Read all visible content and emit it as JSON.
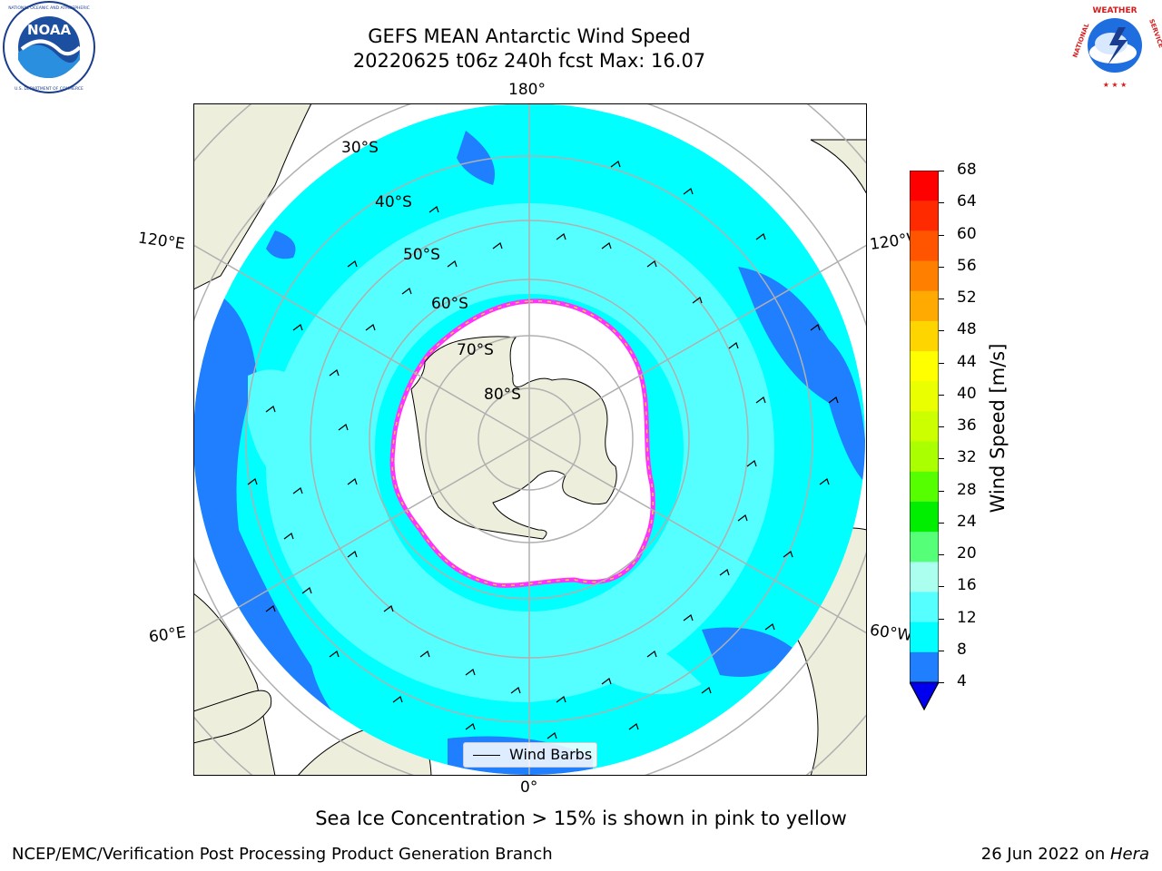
{
  "title": {
    "line1": "GEFS MEAN Antarctic Wind Speed",
    "line2": "20220625 t06z 240h fcst   Max: 16.07"
  },
  "map": {
    "projection": "south-polar-stereographic",
    "longitude_labels": {
      "top": "180°",
      "bottom": "0°",
      "upper_left": "120°E",
      "upper_right": "120°W",
      "lower_left": "60°E",
      "lower_right": "60°W"
    },
    "latitude_labels": [
      "30°S",
      "40°S",
      "50°S",
      "60°S",
      "70°S",
      "80°S"
    ],
    "colors": {
      "land": "#eeeedd",
      "ocean_4_8": "#1f7fff",
      "ocean_8_12": "#00ffff",
      "ocean_12_16": "#55ffff",
      "sea_ice": "#ffffff",
      "ice_edge": "#ff33ff",
      "ice_edge_inner": "#ffcc33",
      "gridline": "#b0b0b0"
    }
  },
  "legend": {
    "label": "Wind Barbs"
  },
  "colorbar": {
    "label": "Wind Speed [m/s]",
    "ticks": [
      "68",
      "64",
      "60",
      "56",
      "52",
      "48",
      "44",
      "40",
      "36",
      "32",
      "28",
      "24",
      "20",
      "16",
      "12",
      "8",
      "4"
    ],
    "colors_top_to_bottom": [
      "#ff0000",
      "#ff2a00",
      "#ff5500",
      "#ff8000",
      "#ffaa00",
      "#ffd500",
      "#ffff00",
      "#eaff00",
      "#ccff00",
      "#aaff00",
      "#55ff00",
      "#00ee00",
      "#55ff77",
      "#aaffee",
      "#55ffff",
      "#00ffff",
      "#1f7fff"
    ],
    "extend_color": "#0000ee"
  },
  "caption": "Sea Ice Concentration > 15% is shown in pink to yellow",
  "footer": {
    "left": "NCEP/EMC/Verification Post Processing Product Generation Branch",
    "right_date": "26 Jun 2022 on ",
    "right_host": "Hera"
  },
  "logos": {
    "left": {
      "name": "NOAA",
      "ring_text": "NATIONAL OCEANIC AND ATMOSPHERIC ADMINISTRATION · U.S. DEPARTMENT OF COMMERCE"
    },
    "right": {
      "name": "NATIONAL WEATHER SERVICE"
    }
  }
}
